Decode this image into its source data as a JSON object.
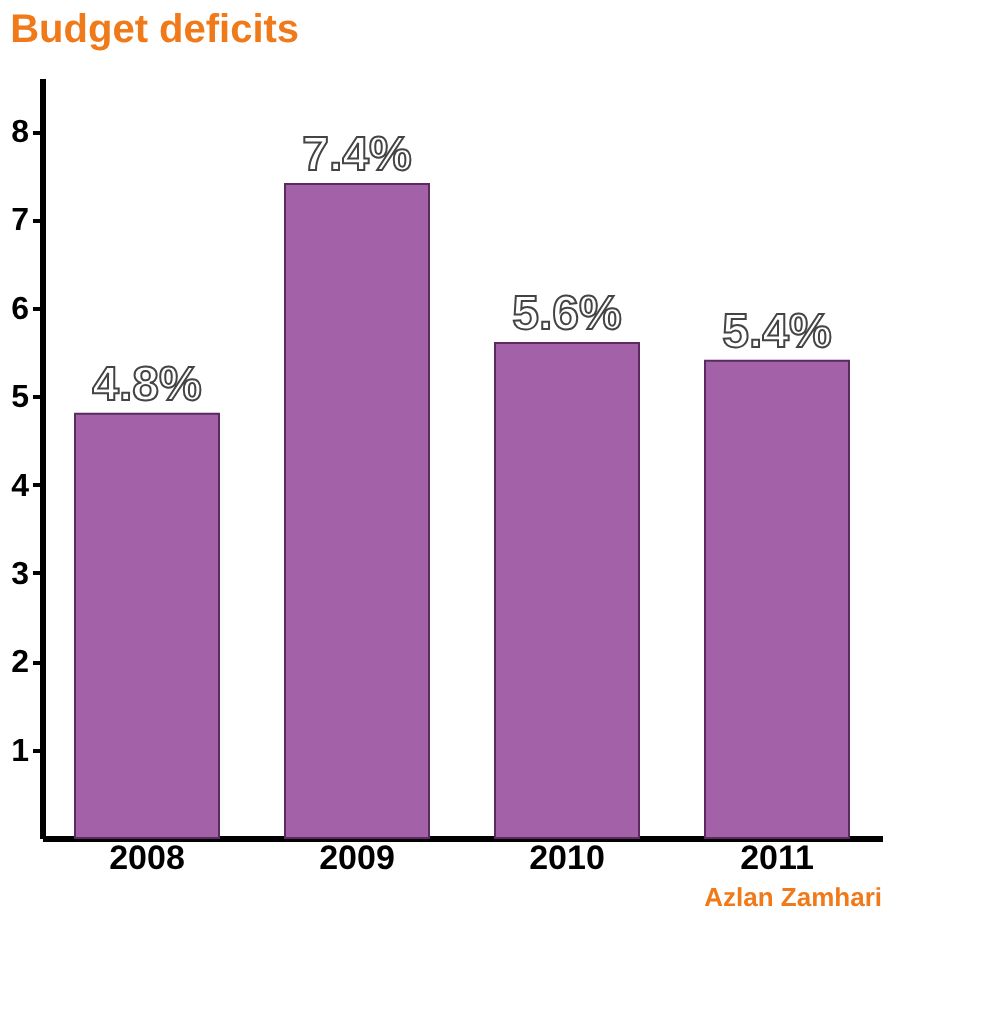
{
  "chart_data": {
    "type": "bar",
    "title": "Budget deficits",
    "categories": [
      "2008",
      "2009",
      "2010",
      "2011"
    ],
    "values": [
      4.8,
      7.4,
      5.6,
      5.4
    ],
    "value_labels": [
      "4.8%",
      "7.4%",
      "5.6%",
      "5.4%"
    ],
    "color": "#a361a8",
    "ylim": [
      0,
      8.6
    ],
    "yticks": [
      1,
      2,
      3,
      4,
      5,
      6,
      7,
      8
    ],
    "grid": false,
    "annotations": [
      "Azlan Zamhari"
    ]
  }
}
